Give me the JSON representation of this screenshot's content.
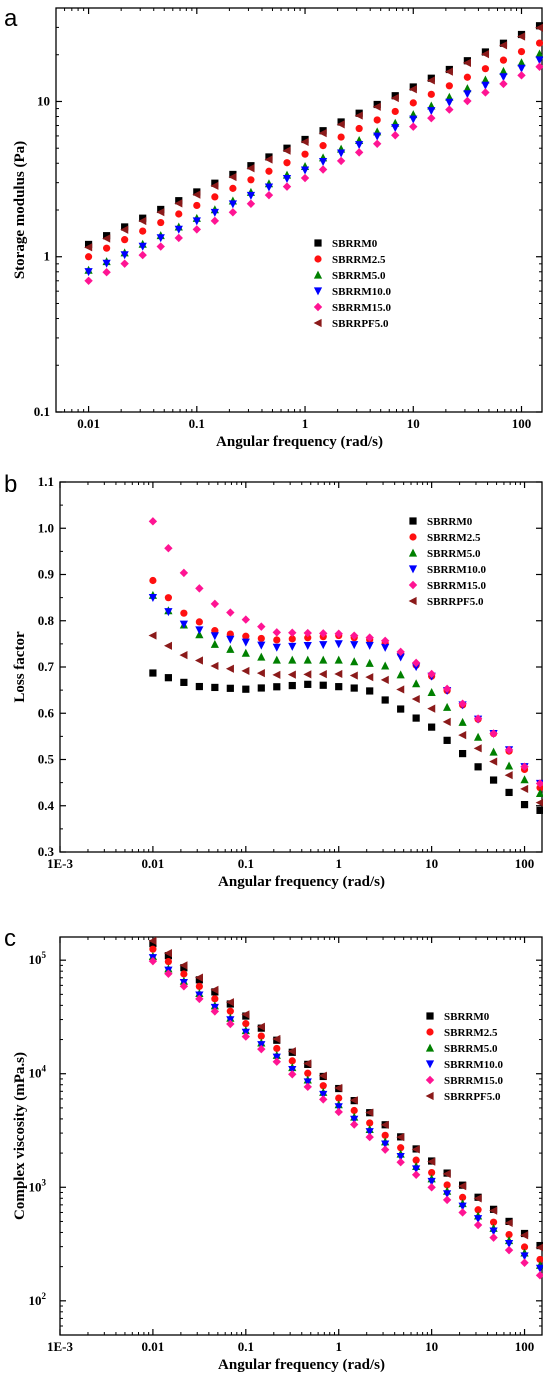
{
  "figure": {
    "panels": [
      "a",
      "b",
      "c"
    ]
  },
  "chart_data": [
    {
      "type": "scatter",
      "panel": "a",
      "xlabel": "Angular frequency (rad/s)",
      "ylabel": "Storage modulus (Pa)",
      "xscale": "log",
      "yscale": "log",
      "xlim": [
        0.005,
        158
      ],
      "ylim": [
        0.1,
        40
      ],
      "xticks": [
        {
          "value": 0.01,
          "label": "0.01"
        },
        {
          "value": 0.1,
          "label": "0.1"
        },
        {
          "value": 1,
          "label": "1"
        },
        {
          "value": 10,
          "label": "10"
        },
        {
          "value": 100,
          "label": "100"
        }
      ],
      "yticks": [
        {
          "value": 0.1,
          "label": "0.1"
        },
        {
          "value": 1,
          "label": "1"
        },
        {
          "value": 10,
          "label": "10"
        }
      ],
      "grid": false,
      "legend_position": "center-right",
      "series": [
        {
          "name": "SBRRM0",
          "color": "#000000",
          "marker": "square",
          "start": 1.2,
          "end": 35
        },
        {
          "name": "SBRRM2.5",
          "color": "#ff1010",
          "marker": "circle",
          "start": 1.0,
          "end": 27
        },
        {
          "name": "SBRRM5.0",
          "color": "#008000",
          "marker": "triangle-up",
          "start": 0.82,
          "end": 23
        },
        {
          "name": "SBRRM10.0",
          "color": "#0000ff",
          "marker": "triangle-down",
          "start": 0.8,
          "end": 21
        },
        {
          "name": "SBRRM15.0",
          "color": "#ff1493",
          "marker": "diamond",
          "start": 0.7,
          "end": 19
        },
        {
          "name": "SBRRPF5.0",
          "color": "#8b1a1a",
          "marker": "triangle-left",
          "start": 1.15,
          "end": 34
        }
      ]
    },
    {
      "type": "scatter",
      "panel": "b",
      "xlabel": "Angular frequency (rad/s)",
      "ylabel": "Loss factor",
      "xscale": "log",
      "yscale": "linear",
      "xlim": [
        0.001,
        158
      ],
      "ylim": [
        0.3,
        1.1
      ],
      "xticks": [
        {
          "value": 0.001,
          "label": "1E-3"
        },
        {
          "value": 0.01,
          "label": "0.01"
        },
        {
          "value": 0.1,
          "label": "0.1"
        },
        {
          "value": 1,
          "label": "1"
        },
        {
          "value": 10,
          "label": "10"
        },
        {
          "value": 100,
          "label": "100"
        }
      ],
      "yticks": [
        {
          "value": 0.3,
          "label": "0.3"
        },
        {
          "value": 0.4,
          "label": "0.4"
        },
        {
          "value": 0.5,
          "label": "0.5"
        },
        {
          "value": 0.6,
          "label": "0.6"
        },
        {
          "value": 0.7,
          "label": "0.7"
        },
        {
          "value": 0.8,
          "label": "0.8"
        },
        {
          "value": 0.9,
          "label": "0.9"
        },
        {
          "value": 1.0,
          "label": "1.0"
        },
        {
          "value": 1.1,
          "label": "1.1"
        }
      ],
      "grid": false,
      "legend_position": "top-right",
      "series": [
        {
          "name": "SBRRM0",
          "color": "#000000",
          "marker": "square",
          "anchors": [
            [
              0.01,
              0.687
            ],
            [
              0.03,
              0.658
            ],
            [
              0.1,
              0.652
            ],
            [
              0.5,
              0.663
            ],
            [
              2,
              0.652
            ],
            [
              10,
              0.57
            ],
            [
              50,
              0.45
            ],
            [
              120,
              0.39
            ]
          ]
        },
        {
          "name": "SBRRM2.5",
          "color": "#ff1010",
          "marker": "circle",
          "anchors": [
            [
              0.01,
              0.887
            ],
            [
              0.02,
              0.82
            ],
            [
              0.05,
              0.775
            ],
            [
              0.2,
              0.758
            ],
            [
              1,
              0.768
            ],
            [
              3,
              0.755
            ],
            [
              10,
              0.68
            ],
            [
              50,
              0.55
            ],
            [
              160,
              0.43
            ]
          ]
        },
        {
          "name": "SBRRM5.0",
          "color": "#008000",
          "marker": "triangle-up",
          "anchors": [
            [
              0.01,
              0.855
            ],
            [
              0.02,
              0.795
            ],
            [
              0.05,
              0.745
            ],
            [
              0.2,
              0.715
            ],
            [
              1,
              0.715
            ],
            [
              3,
              0.705
            ],
            [
              10,
              0.645
            ],
            [
              50,
              0.51
            ],
            [
              160,
              0.42
            ]
          ]
        },
        {
          "name": "SBRRM10.0",
          "color": "#0000ff",
          "marker": "triangle-down",
          "anchors": [
            [
              0.01,
              0.85
            ],
            [
              0.02,
              0.795
            ],
            [
              0.05,
              0.765
            ],
            [
              0.2,
              0.742
            ],
            [
              1,
              0.75
            ],
            [
              3,
              0.745
            ],
            [
              10,
              0.68
            ],
            [
              50,
              0.55
            ],
            [
              160,
              0.44
            ]
          ]
        },
        {
          "name": "SBRRM15.0",
          "color": "#ff1493",
          "marker": "diamond",
          "anchors": [
            [
              0.01,
              1.015
            ],
            [
              0.02,
              0.91
            ],
            [
              0.05,
              0.83
            ],
            [
              0.2,
              0.775
            ],
            [
              1,
              0.772
            ],
            [
              3,
              0.76
            ],
            [
              10,
              0.685
            ],
            [
              50,
              0.55
            ],
            [
              160,
              0.44
            ]
          ]
        },
        {
          "name": "SBRRPF5.0",
          "color": "#8b1a1a",
          "marker": "triangle-left",
          "anchors": [
            [
              0.01,
              0.768
            ],
            [
              0.02,
              0.728
            ],
            [
              0.05,
              0.7
            ],
            [
              0.2,
              0.683
            ],
            [
              1,
              0.685
            ],
            [
              3,
              0.675
            ],
            [
              10,
              0.61
            ],
            [
              50,
              0.49
            ],
            [
              160,
              0.4
            ]
          ]
        }
      ]
    },
    {
      "type": "scatter",
      "panel": "c",
      "xlabel": "Angular frequency (rad/s)",
      "ylabel": "Complex viscosity (mPa.s)",
      "xscale": "log",
      "yscale": "log",
      "xlim": [
        0.001,
        158
      ],
      "ylim": [
        50,
        160000
      ],
      "xticks": [
        {
          "value": 0.001,
          "label": "1E-3"
        },
        {
          "value": 0.01,
          "label": "0.01"
        },
        {
          "value": 0.1,
          "label": "0.1"
        },
        {
          "value": 1,
          "label": "1"
        },
        {
          "value": 10,
          "label": "10"
        },
        {
          "value": 100,
          "label": "100"
        }
      ],
      "yticks": [
        {
          "value": 100,
          "label": "10",
          "sup": "2"
        },
        {
          "value": 1000,
          "label": "10",
          "sup": "3"
        },
        {
          "value": 10000,
          "label": "10",
          "sup": "4"
        },
        {
          "value": 100000,
          "label": "10",
          "sup": "5"
        }
      ],
      "grid": false,
      "legend_position": "top-right",
      "series": [
        {
          "name": "SBRRM0",
          "color": "#000000",
          "marker": "square",
          "start": 140000,
          "end": 240
        },
        {
          "name": "SBRRM2.5",
          "color": "#ff1010",
          "marker": "circle",
          "start": 125000,
          "end": 180
        },
        {
          "name": "SBRRM5.0",
          "color": "#008000",
          "marker": "triangle-up",
          "start": 108000,
          "end": 160
        },
        {
          "name": "SBRRM10.0",
          "color": "#0000ff",
          "marker": "triangle-down",
          "start": 105000,
          "end": 150
        },
        {
          "name": "SBRRM15.0",
          "color": "#ff1493",
          "marker": "diamond",
          "start": 98000,
          "end": 130
        },
        {
          "name": "SBRRPF5.0",
          "color": "#8b1a1a",
          "marker": "triangle-left",
          "start": 148000,
          "end": 230
        }
      ]
    }
  ]
}
